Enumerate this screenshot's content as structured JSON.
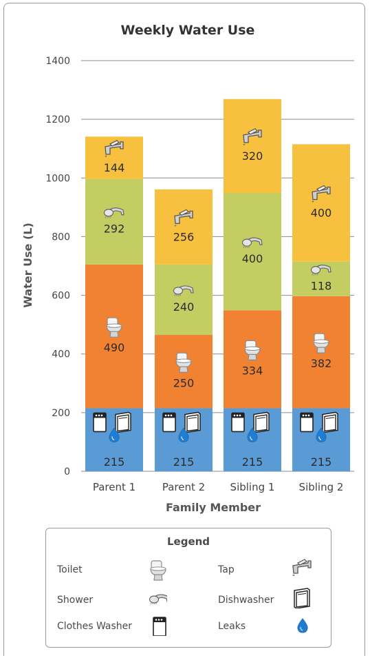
{
  "chart_data": {
    "type": "bar",
    "stacked": true,
    "title": "Weekly Water Use",
    "xlabel": "Family Member",
    "ylabel": "Water Use (L)",
    "ylim": [
      0,
      1400
    ],
    "yticks": [
      0,
      200,
      400,
      600,
      800,
      1000,
      1200,
      1400
    ],
    "grid": true,
    "categories": [
      "Parent 1",
      "Parent 2",
      "Sibling 1",
      "Sibling 2"
    ],
    "series": [
      {
        "key": "base",
        "color": "#5b9bd5",
        "icons": [
          "clothes-washer",
          "dishwasher",
          "leaks"
        ],
        "values": [
          215,
          215,
          215,
          215
        ]
      },
      {
        "key": "toilet",
        "color": "#f08232",
        "icons": [
          "toilet"
        ],
        "values": [
          490,
          250,
          334,
          382
        ]
      },
      {
        "key": "shower",
        "color": "#c3cd62",
        "icons": [
          "shower"
        ],
        "values": [
          292,
          240,
          400,
          118
        ]
      },
      {
        "key": "tap",
        "color": "#f8c03f",
        "icons": [
          "tap"
        ],
        "values": [
          144,
          256,
          320,
          400
        ]
      }
    ]
  },
  "legend": {
    "title": "Legend",
    "items": [
      {
        "key": "toilet",
        "label": "Toilet"
      },
      {
        "key": "tap",
        "label": "Tap"
      },
      {
        "key": "shower",
        "label": "Shower"
      },
      {
        "key": "dishwasher",
        "label": "Dishwasher"
      },
      {
        "key": "clothes-washer",
        "label": "Clothes Washer"
      },
      {
        "key": "leaks",
        "label": "Leaks"
      }
    ]
  }
}
